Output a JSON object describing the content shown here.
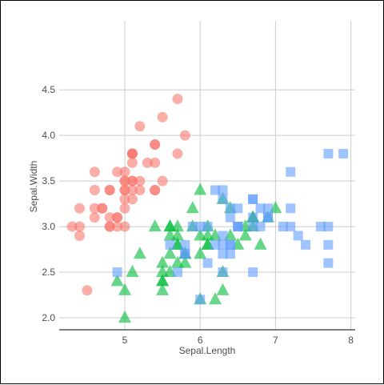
{
  "chart_data": {
    "type": "scatter",
    "title": "",
    "xlabel": "Sepal.Length",
    "ylabel": "Sepal.Width",
    "xlim": [
      4.2,
      8.0
    ],
    "ylim": [
      1.9,
      4.6
    ],
    "x_ticks": [
      5,
      6,
      7,
      8
    ],
    "y_ticks": [
      2.0,
      2.5,
      3.0,
      3.5,
      4.0,
      4.5
    ],
    "x_tick_labels": [
      "5",
      "6",
      "7",
      "8"
    ],
    "y_tick_labels": [
      "2.0",
      "2.5",
      "3.0",
      "3.5",
      "4.0",
      "4.5"
    ],
    "grid": true,
    "legend": "none",
    "series": [
      {
        "marker": "circle",
        "color": "#F8766D",
        "points": [
          [
            5.1,
            3.5
          ],
          [
            4.9,
            3.0
          ],
          [
            4.7,
            3.2
          ],
          [
            4.6,
            3.1
          ],
          [
            5.0,
            3.6
          ],
          [
            5.4,
            3.9
          ],
          [
            4.6,
            3.4
          ],
          [
            5.0,
            3.4
          ],
          [
            4.4,
            2.9
          ],
          [
            4.9,
            3.1
          ],
          [
            5.4,
            3.7
          ],
          [
            4.8,
            3.4
          ],
          [
            4.8,
            3.0
          ],
          [
            4.3,
            3.0
          ],
          [
            5.8,
            4.0
          ],
          [
            5.7,
            4.4
          ],
          [
            5.4,
            3.9
          ],
          [
            5.1,
            3.5
          ],
          [
            5.7,
            3.8
          ],
          [
            5.1,
            3.8
          ],
          [
            5.4,
            3.4
          ],
          [
            5.1,
            3.7
          ],
          [
            4.6,
            3.6
          ],
          [
            5.1,
            3.3
          ],
          [
            4.8,
            3.4
          ],
          [
            5.0,
            3.0
          ],
          [
            5.0,
            3.4
          ],
          [
            5.2,
            3.5
          ],
          [
            5.2,
            3.4
          ],
          [
            4.7,
            3.2
          ],
          [
            4.8,
            3.1
          ],
          [
            5.4,
            3.4
          ],
          [
            5.2,
            4.1
          ],
          [
            5.5,
            4.2
          ],
          [
            4.9,
            3.1
          ],
          [
            5.0,
            3.2
          ],
          [
            5.5,
            3.5
          ],
          [
            4.9,
            3.6
          ],
          [
            4.4,
            3.0
          ],
          [
            5.1,
            3.4
          ],
          [
            5.0,
            3.5
          ],
          [
            4.5,
            2.3
          ],
          [
            4.4,
            3.2
          ],
          [
            5.0,
            3.5
          ],
          [
            5.1,
            3.8
          ],
          [
            4.8,
            3.0
          ],
          [
            5.1,
            3.8
          ],
          [
            4.6,
            3.2
          ],
          [
            5.3,
            3.7
          ],
          [
            5.0,
            3.3
          ]
        ]
      },
      {
        "marker": "triangle",
        "color": "#00BA38",
        "points": [
          [
            7.0,
            3.2
          ],
          [
            6.4,
            3.2
          ],
          [
            6.9,
            3.1
          ],
          [
            5.5,
            2.3
          ],
          [
            6.5,
            2.8
          ],
          [
            5.7,
            2.8
          ],
          [
            6.3,
            3.3
          ],
          [
            4.9,
            2.4
          ],
          [
            6.6,
            2.9
          ],
          [
            5.2,
            2.7
          ],
          [
            5.0,
            2.0
          ],
          [
            5.9,
            3.0
          ],
          [
            6.0,
            2.2
          ],
          [
            6.1,
            2.9
          ],
          [
            5.6,
            2.9
          ],
          [
            6.7,
            3.1
          ],
          [
            5.6,
            3.0
          ],
          [
            5.8,
            2.7
          ],
          [
            6.2,
            2.2
          ],
          [
            5.6,
            2.5
          ],
          [
            5.9,
            3.2
          ],
          [
            6.1,
            2.8
          ],
          [
            6.3,
            2.5
          ],
          [
            6.1,
            2.8
          ],
          [
            6.4,
            2.9
          ],
          [
            6.6,
            3.0
          ],
          [
            6.8,
            2.8
          ],
          [
            6.7,
            3.0
          ],
          [
            6.0,
            2.9
          ],
          [
            5.7,
            2.6
          ],
          [
            5.5,
            2.4
          ],
          [
            5.5,
            2.4
          ],
          [
            5.8,
            2.7
          ],
          [
            6.0,
            2.7
          ],
          [
            5.4,
            3.0
          ],
          [
            6.0,
            3.4
          ],
          [
            6.7,
            3.1
          ],
          [
            6.3,
            2.3
          ],
          [
            5.6,
            3.0
          ],
          [
            5.5,
            2.5
          ],
          [
            5.5,
            2.6
          ],
          [
            6.1,
            3.0
          ],
          [
            5.8,
            2.6
          ],
          [
            5.0,
            2.3
          ],
          [
            5.6,
            2.7
          ],
          [
            5.7,
            3.0
          ],
          [
            5.7,
            2.9
          ],
          [
            6.2,
            2.9
          ],
          [
            5.1,
            2.5
          ],
          [
            5.7,
            2.8
          ]
        ]
      },
      {
        "marker": "square",
        "color": "#619CFF",
        "points": [
          [
            6.3,
            3.3
          ],
          [
            5.8,
            2.7
          ],
          [
            7.1,
            3.0
          ],
          [
            6.3,
            2.9
          ],
          [
            6.5,
            3.0
          ],
          [
            7.6,
            3.0
          ],
          [
            4.9,
            2.5
          ],
          [
            7.3,
            2.9
          ],
          [
            6.7,
            2.5
          ],
          [
            7.2,
            3.6
          ],
          [
            6.5,
            3.2
          ],
          [
            6.4,
            2.7
          ],
          [
            6.8,
            3.0
          ],
          [
            5.7,
            2.5
          ],
          [
            5.8,
            2.8
          ],
          [
            6.4,
            3.2
          ],
          [
            6.5,
            3.0
          ],
          [
            7.7,
            3.8
          ],
          [
            7.7,
            2.6
          ],
          [
            6.0,
            2.2
          ],
          [
            6.9,
            3.2
          ],
          [
            5.6,
            2.8
          ],
          [
            7.7,
            2.8
          ],
          [
            6.3,
            2.7
          ],
          [
            6.7,
            3.3
          ],
          [
            7.2,
            3.2
          ],
          [
            6.2,
            2.8
          ],
          [
            6.1,
            3.0
          ],
          [
            6.4,
            2.8
          ],
          [
            7.2,
            3.0
          ],
          [
            7.4,
            2.8
          ],
          [
            7.9,
            3.8
          ],
          [
            6.4,
            2.8
          ],
          [
            6.3,
            2.8
          ],
          [
            6.1,
            2.6
          ],
          [
            7.7,
            3.0
          ],
          [
            6.3,
            3.4
          ],
          [
            6.4,
            3.1
          ],
          [
            6.0,
            3.0
          ],
          [
            6.9,
            3.1
          ],
          [
            6.7,
            3.1
          ],
          [
            6.9,
            3.1
          ],
          [
            5.8,
            2.7
          ],
          [
            6.8,
            3.2
          ],
          [
            6.7,
            3.3
          ],
          [
            6.7,
            3.0
          ],
          [
            6.3,
            2.5
          ],
          [
            6.5,
            3.0
          ],
          [
            6.2,
            3.4
          ],
          [
            5.9,
            3.0
          ]
        ]
      }
    ]
  }
}
